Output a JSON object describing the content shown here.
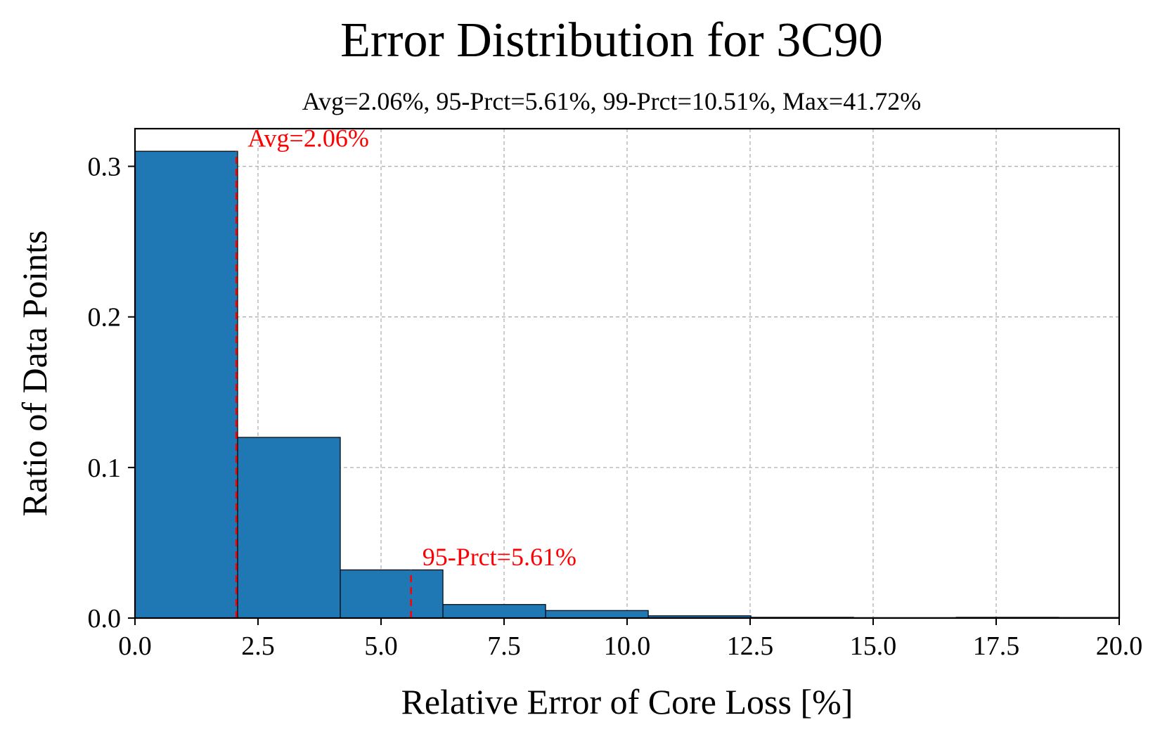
{
  "chart_data": {
    "type": "bar",
    "title": "Error Distribution for 3C90",
    "subtitle": "Avg=2.06%, 95-Prct=5.61%, 99-Prct=10.51%, Max=41.72%",
    "xlabel": "Relative Error of Core Loss [%]",
    "ylabel": "Ratio of Data Points",
    "xlim": [
      0,
      20
    ],
    "ylim": [
      0,
      0.325
    ],
    "xticks": [
      0,
      2.5,
      5,
      7.5,
      10,
      12.5,
      15,
      17.5,
      20
    ],
    "xtick_labels": [
      "0.0",
      "2.5",
      "5.0",
      "7.5",
      "10.0",
      "12.5",
      "15.0",
      "17.5",
      "20.0"
    ],
    "yticks": [
      0,
      0.1,
      0.2,
      0.3
    ],
    "ytick_labels": [
      "0.0",
      "0.1",
      "0.2",
      "0.3"
    ],
    "grid": true,
    "bar_color": "#1f77b4",
    "bins": [
      {
        "x0": 0.0,
        "x1": 2.086,
        "value": 0.31
      },
      {
        "x0": 2.086,
        "x1": 4.172,
        "value": 0.12
      },
      {
        "x0": 4.172,
        "x1": 6.258,
        "value": 0.032
      },
      {
        "x0": 6.258,
        "x1": 8.344,
        "value": 0.009
      },
      {
        "x0": 8.344,
        "x1": 10.43,
        "value": 0.005
      },
      {
        "x0": 10.43,
        "x1": 12.516,
        "value": 0.0015
      },
      {
        "x0": 12.516,
        "x1": 14.602,
        "value": 0.0005
      },
      {
        "x0": 14.602,
        "x1": 16.688,
        "value": 0.0003
      },
      {
        "x0": 16.688,
        "x1": 18.774,
        "value": 0.0005
      },
      {
        "x0": 18.774,
        "x1": 20.86,
        "value": 0.0004
      }
    ],
    "markers": [
      {
        "x": 2.06,
        "ymax": 0.31,
        "label": "Avg=2.06%",
        "label_y": 0.313,
        "color": "#ff0000"
      },
      {
        "x": 5.61,
        "ymax": 0.032,
        "label": "95-Prct=5.61%",
        "label_y": 0.035,
        "color": "#ff0000"
      }
    ]
  }
}
